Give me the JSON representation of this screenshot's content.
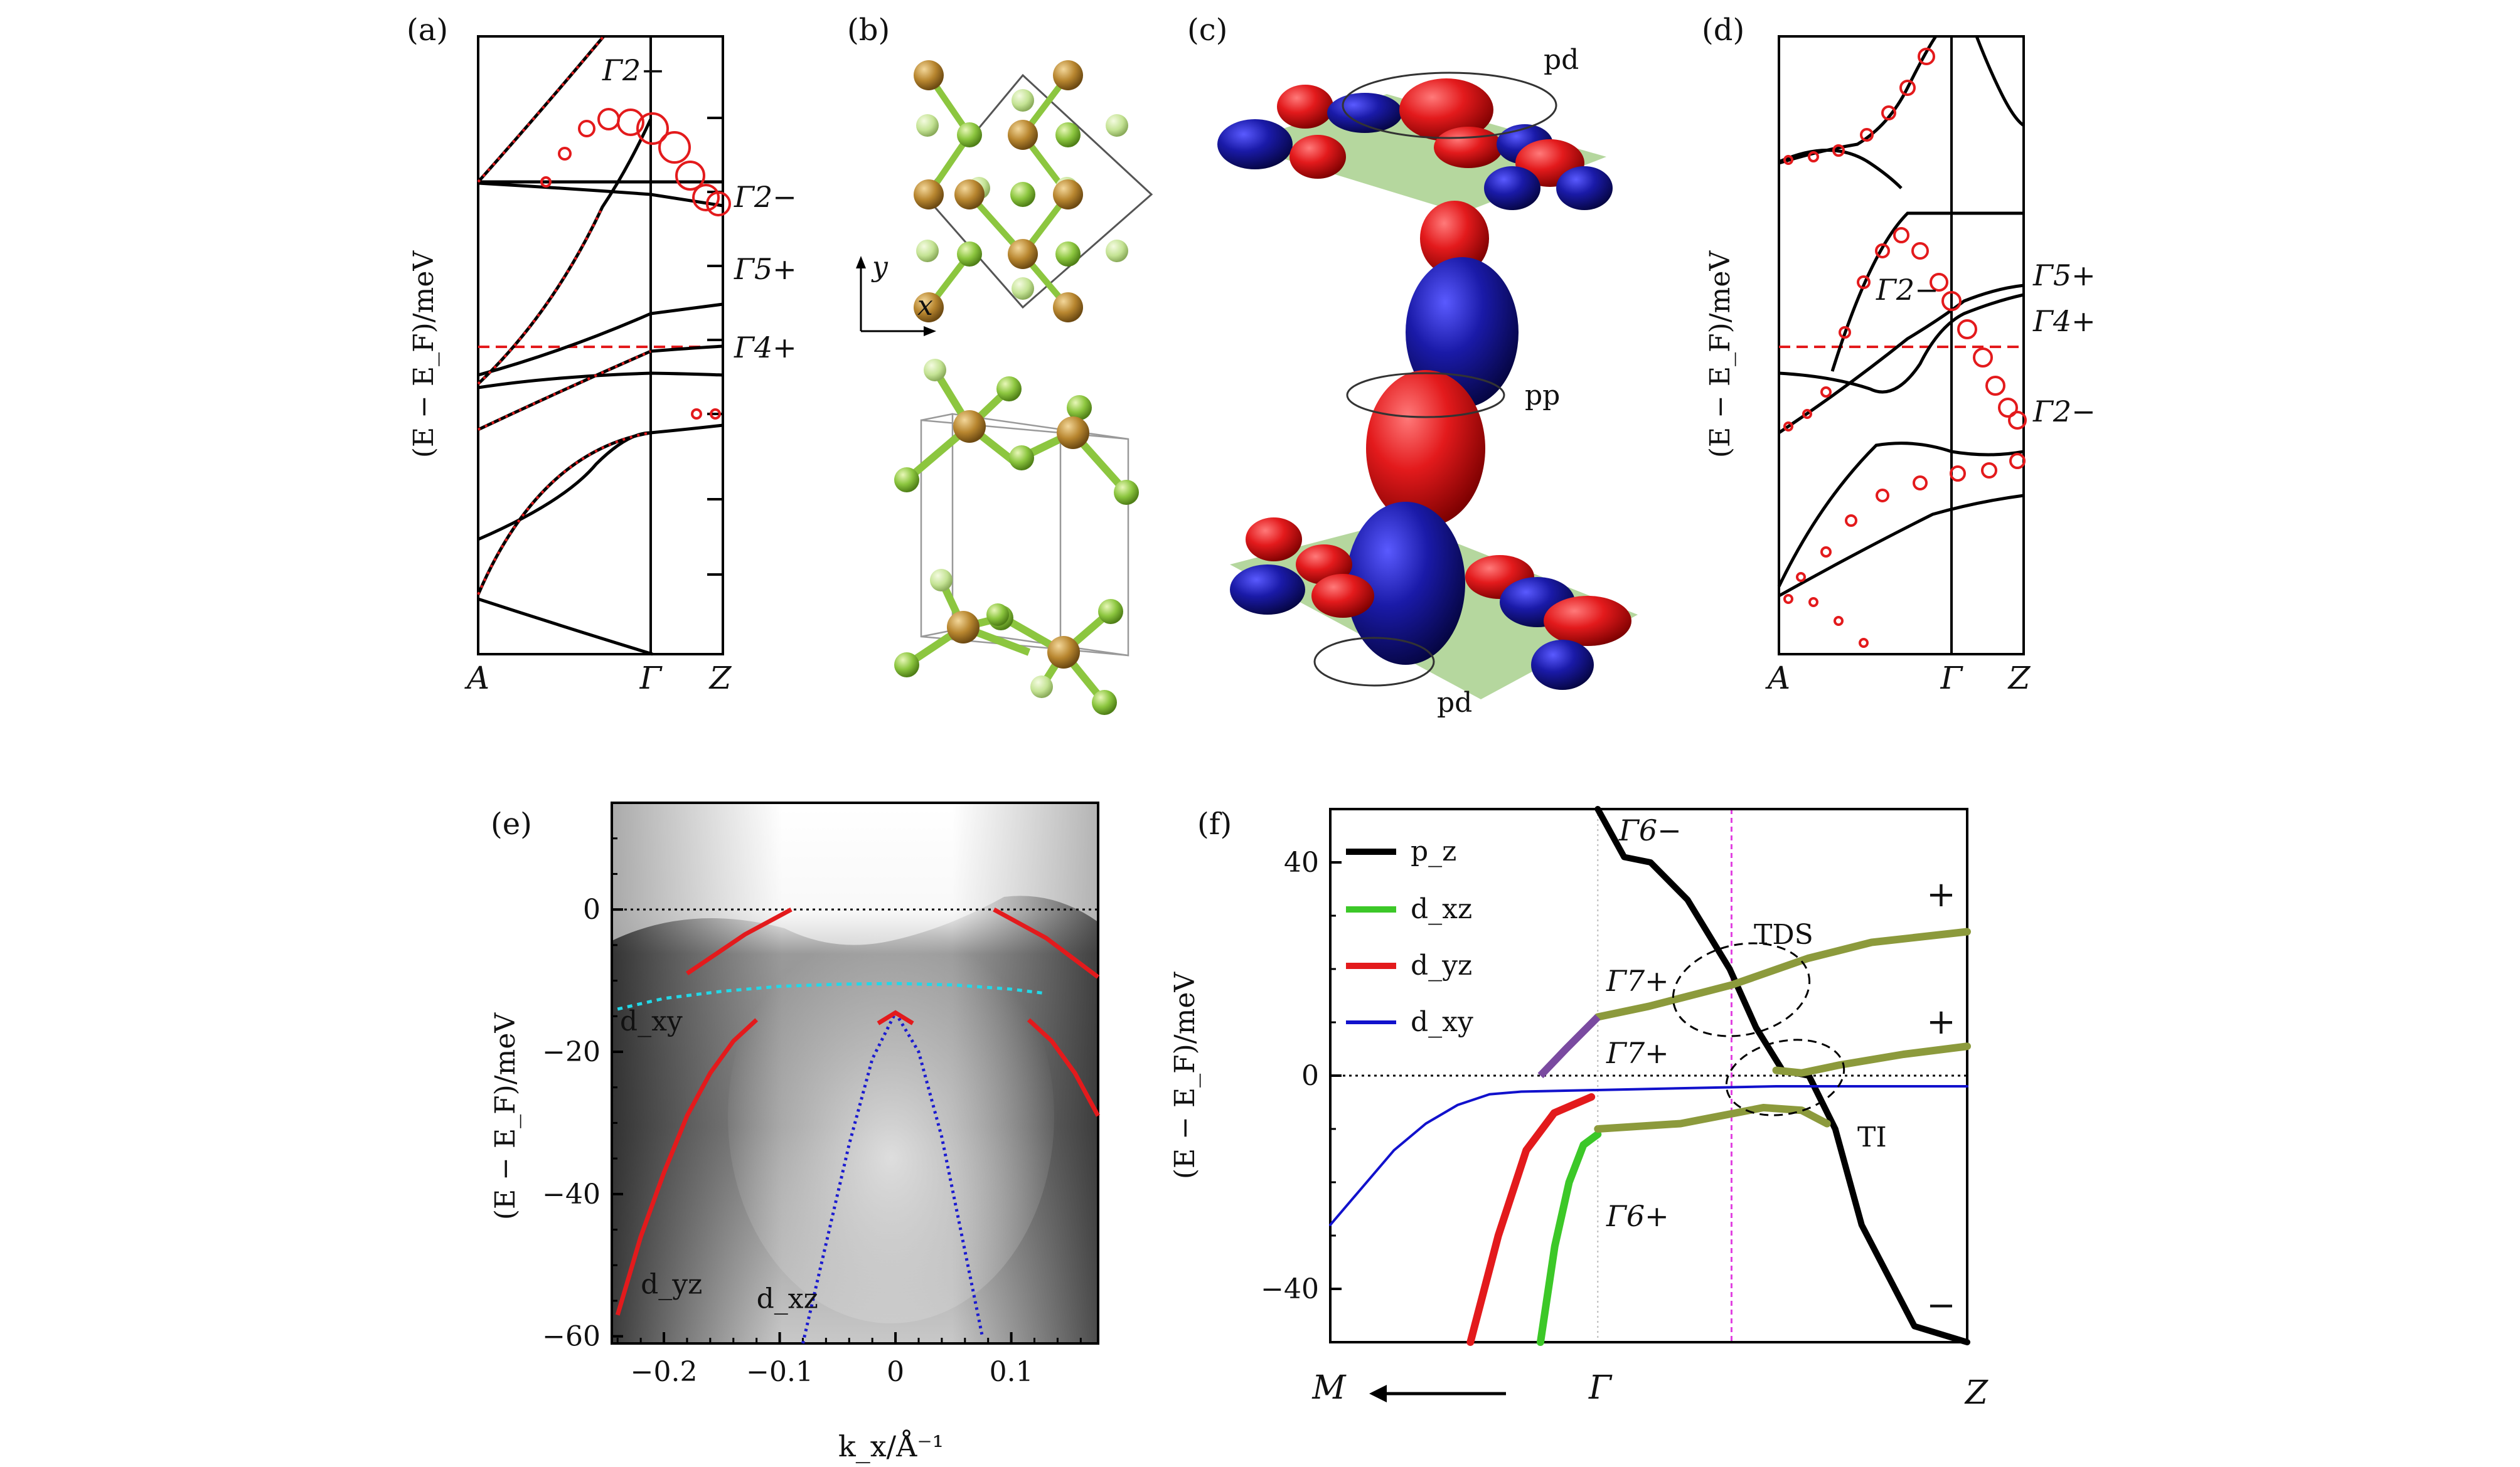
{
  "panels": {
    "a": {
      "label": "(a)",
      "ylabel": "(E − E_F)/meV",
      "kpoints": [
        "A",
        "Γ",
        "Z"
      ],
      "irreps": [
        "Γ2−",
        "Γ2−",
        "Γ5+",
        "Γ4+"
      ]
    },
    "b": {
      "label": "(b)",
      "axis_y": "y",
      "axis_x": "x"
    },
    "c": {
      "label": "(c)",
      "bonds": [
        "pd",
        "pp",
        "pd"
      ]
    },
    "d": {
      "label": "(d)",
      "ylabel": "(E − E_F)/meV",
      "kpoints": [
        "A",
        "Γ",
        "Z"
      ],
      "irreps": [
        "Γ5+",
        "Γ4+",
        "Γ2−",
        "Γ2−"
      ]
    },
    "e": {
      "label": "(e)",
      "ylabel": "(E − E_F)/meV",
      "xlabel": "k_x/Å⁻¹",
      "bands": [
        "d_xy",
        "d_yz",
        "d_xz"
      ]
    },
    "f": {
      "label": "(f)",
      "ylabel": "(E − E_F)/meV",
      "kpoints": [
        "M",
        "Γ",
        "Z"
      ],
      "legend": [
        "p_z",
        "d_xz",
        "d_yz",
        "d_xy"
      ],
      "irreps": [
        "Γ6−",
        "Γ7+",
        "Γ7+",
        "Γ6+"
      ],
      "annotations": [
        "TDS",
        "TI"
      ],
      "parity": [
        "+",
        "+",
        "−"
      ]
    }
  },
  "chart_data": [
    {
      "type": "line",
      "panel": "e",
      "title": "",
      "xlabel": "k_x/Å⁻¹",
      "ylabel": "(E − E_F)/meV",
      "xlim": [
        -0.245,
        0.175
      ],
      "ylim": [
        -61,
        15
      ],
      "xticks": [
        "−0.2",
        "−0.1",
        "0",
        "0.1"
      ],
      "yticks": [
        "0",
        "−20",
        "−40",
        "−60"
      ],
      "series": [
        {
          "name": "d_xy",
          "color": "#22d8e8",
          "x": [
            -0.24,
            -0.2,
            -0.15,
            -0.1,
            -0.05,
            0.0,
            0.05,
            0.1,
            0.13
          ],
          "y": [
            -14,
            -12.5,
            -11.5,
            -10.8,
            -10.5,
            -10.4,
            -10.6,
            -11.2,
            -11.8
          ]
        },
        {
          "name": "d_yz",
          "color": "#e31a1c",
          "x": [
            -0.24,
            -0.22,
            -0.2,
            -0.18,
            -0.16,
            -0.14,
            -0.12
          ],
          "y": [
            -57,
            -46,
            -37,
            -29,
            -23,
            -18.5,
            -15.5
          ]
        },
        {
          "name": "d_xz",
          "color": "#1a1ad0",
          "x": [
            -0.08,
            -0.06,
            -0.04,
            -0.02,
            0.0,
            0.02,
            0.04,
            0.06,
            0.075
          ],
          "y": [
            -61,
            -47,
            -33,
            -21,
            -14.5,
            -20,
            -32,
            -48,
            -60
          ]
        }
      ],
      "labels": [
        "d_xy",
        "d_yz",
        "d_xz"
      ]
    },
    {
      "type": "line",
      "panel": "f",
      "title": "",
      "xlabel": "",
      "ylabel": "(E − E_F)/meV",
      "ylim": [
        -50,
        50
      ],
      "yticks": [
        "40",
        "0",
        "−40"
      ],
      "xticks": [
        "M",
        "Γ",
        "Z"
      ],
      "series": [
        {
          "name": "p_z",
          "color": "#000000",
          "x": [
            0.3,
            0.35,
            0.4,
            0.47,
            0.55,
            0.6,
            0.65,
            0.7,
            0.75,
            0.8,
            0.9,
            1.0
          ],
          "y": [
            50,
            41,
            40,
            33,
            20,
            9,
            1,
            0,
            -10,
            -28,
            -47,
            -50
          ]
        },
        {
          "name": "d_xz",
          "color": "#3cc828",
          "x": [
            0.22,
            0.24,
            0.26,
            0.28,
            0.3
          ],
          "y": [
            -50,
            -32,
            -20,
            -13,
            -11
          ]
        },
        {
          "name": "d_yz",
          "color": "#e31a1c",
          "x": [
            0.15,
            0.18,
            0.21,
            0.24,
            0.28
          ],
          "y": [
            -50,
            -30,
            -14,
            -7,
            -4
          ]
        },
        {
          "name": "d_xy",
          "color": "#1111cc",
          "x": [
            0.0,
            0.05,
            0.1,
            0.15,
            0.2,
            0.25,
            0.3,
            0.5,
            0.7,
            1.0
          ],
          "y": [
            -28,
            -21,
            -14,
            -9,
            -5.5,
            -3.5,
            -3,
            -2.5,
            -2,
            -2
          ]
        }
      ]
    }
  ]
}
